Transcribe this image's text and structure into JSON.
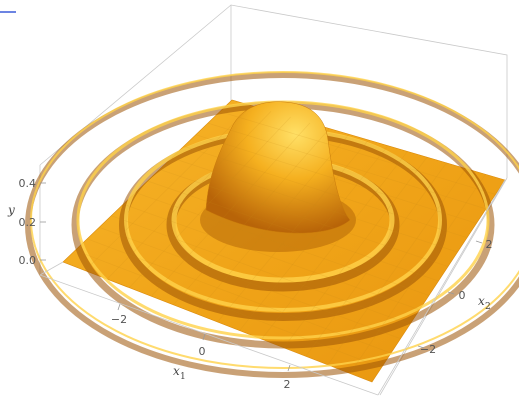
{
  "chart_data": {
    "type": "surface3d",
    "title": "",
    "function": "damped radial ripple surface (central peak with concentric rings)",
    "axes": {
      "x1": {
        "label": "x",
        "subscript": "1",
        "ticks": [
          "−2",
          "0",
          "2"
        ],
        "range": [
          -3.5,
          3.5
        ]
      },
      "x2": {
        "label": "x",
        "subscript": "2",
        "ticks": [
          "−2",
          "0",
          "2"
        ],
        "range": [
          -3.5,
          3.5
        ]
      },
      "y": {
        "label": "y",
        "ticks": [
          "0.0",
          "0.2",
          "0.4"
        ],
        "range": [
          -0.05,
          0.5
        ]
      }
    },
    "peak_value": 0.45,
    "surface_color": "#f3a61b",
    "highlight_color": "#ffd54a",
    "shadow_color": "#a85a05"
  }
}
